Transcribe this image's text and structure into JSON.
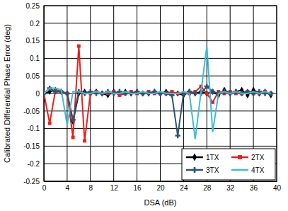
{
  "chart_data": {
    "type": "line",
    "x_label": "DSA (dB)",
    "y_label": "Calibrated Differential Phase Error (deg)",
    "x": [
      0,
      1,
      2,
      3,
      4,
      5,
      6,
      7,
      8,
      9,
      10,
      11,
      12,
      13,
      14,
      15,
      16,
      17,
      18,
      19,
      20,
      21,
      22,
      23,
      24,
      25,
      26,
      27,
      28,
      29,
      30,
      31,
      32,
      33,
      34,
      35,
      36,
      37,
      38,
      39
    ],
    "series": [
      {
        "name": "1TX",
        "color": "#000000",
        "marker": "diamond",
        "line_style": "solid",
        "values": [
          0,
          0.005,
          0.01,
          0.005,
          0.0,
          -0.08,
          0.0,
          0.005,
          0.0,
          0.005,
          0.0,
          -0.005,
          0.005,
          0.0,
          0.005,
          0.0,
          0.005,
          0.0,
          0.0,
          0.005,
          0.0,
          0.005,
          0.0,
          0.0,
          -0.005,
          0.005,
          0.0,
          0.005,
          0.0,
          0.005,
          -0.005,
          0.01,
          0.0,
          0.005,
          0.01,
          -0.005,
          0.01,
          0.0,
          0.005,
          -0.005
        ]
      },
      {
        "name": "2TX",
        "color": "#e8201c",
        "marker": "square",
        "line_style": "solid",
        "values": [
          0,
          -0.085,
          0.01,
          0.005,
          0.0,
          -0.125,
          0.135,
          -0.135,
          0.0,
          0.005,
          0.0,
          0.0,
          0.005,
          -0.005,
          0.0,
          0.005,
          0.0,
          0.0,
          0.005,
          0.0,
          0.0,
          0.0,
          0.005,
          0.0,
          0.0,
          0.0,
          0.005,
          0.02,
          0.0,
          -0.025,
          0.005,
          0.0,
          0.005,
          0.0,
          0.0,
          0.005,
          0.0,
          0.0,
          0.005,
          0.0
        ]
      },
      {
        "name": "3TX",
        "color": "#2e5470",
        "marker": "cross",
        "line_style": "solid",
        "values": [
          0,
          0.015,
          0.005,
          0.005,
          0.0,
          -0.075,
          0.005,
          0.0,
          0.005,
          0.0,
          0.0,
          0.005,
          0.0,
          0.005,
          0.0,
          0.0,
          0.005,
          0.0,
          0.0,
          0.005,
          0.0,
          0.0,
          -0.005,
          -0.12,
          0.0,
          0.005,
          0.0,
          0.0,
          0.02,
          0.005,
          0.0,
          0.005,
          0.0,
          0.005,
          0.0,
          0.005,
          0.0,
          0.005,
          0.0,
          0.0
        ]
      },
      {
        "name": "4TX",
        "color": "#3cbcd8",
        "marker": "none",
        "line_style": "solid",
        "values": [
          0,
          0.015,
          0.015,
          0.01,
          -0.09,
          0.005,
          0.005,
          0.0,
          0.0,
          0.005,
          0.0,
          0.005,
          0.0,
          0.0,
          0.005,
          0.0,
          0.0,
          0.005,
          0.0,
          0.0,
          0.005,
          0.0,
          0.0,
          0.0,
          0.005,
          0.0,
          -0.13,
          0.005,
          0.135,
          -0.11,
          0.0,
          0.005,
          0.0,
          0.005,
          0.0,
          0.0,
          0.005,
          0.0,
          0.005,
          0.0
        ]
      }
    ],
    "xlim": [
      0,
      40
    ],
    "xticks": [
      0,
      4,
      8,
      12,
      16,
      20,
      24,
      28,
      32,
      36,
      40
    ],
    "ylim": [
      -0.25,
      0.25
    ],
    "yticks": [
      -0.25,
      -0.2,
      -0.15,
      -0.1,
      -0.05,
      0,
      0.05,
      0.1,
      0.15,
      0.2,
      0.25
    ],
    "grid": true,
    "legend": "bottom-right"
  }
}
